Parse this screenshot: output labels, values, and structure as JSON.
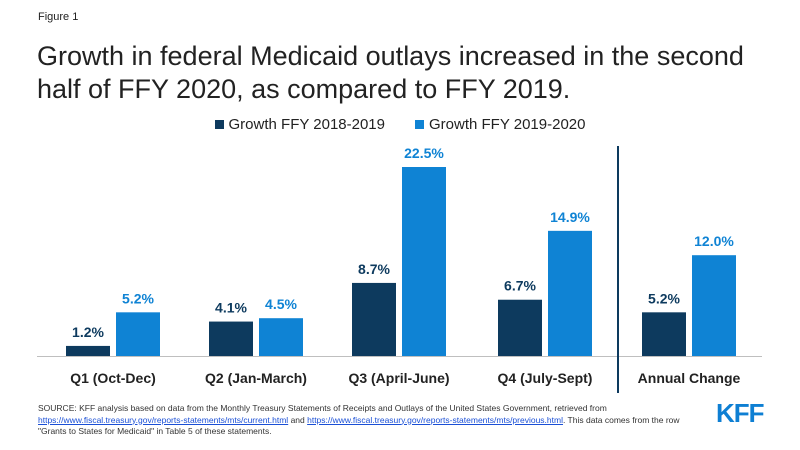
{
  "figure_label": "Figure 1",
  "title": "Growth in federal Medicaid outlays increased in the second half of FFY 2020, as compared to FFY 2019.",
  "logo": "KFF",
  "colors": {
    "series1": "#0d3a5e",
    "series2": "#0f83d4",
    "divider": "#0d3a5e"
  },
  "source": {
    "prefix": "SOURCE: KFF analysis based on data from the Monthly Treasury Statements of Receipts and Outlays of the United States Government, retrieved from ",
    "link1": "https://www.fiscal.treasury.gov/reports-statements/mts/current.html",
    "middle": " and ",
    "link2": "https://www.fiscal.treasury.gov/reports-statements/mts/previous.html",
    "suffix": ". This data comes from the row \"Grants to States for Medicaid\" in Table 5 of these statements."
  },
  "chart_data": {
    "type": "bar",
    "categories": [
      "Q1 (Oct-Dec)",
      "Q2 (Jan-March)",
      "Q3 (April-June)",
      "Q4 (July-Sept)",
      "Annual Change"
    ],
    "series": [
      {
        "name": "Growth FFY 2018-2019",
        "values": [
          1.2,
          4.1,
          8.7,
          6.7,
          5.2
        ],
        "labels": [
          "1.2%",
          "4.1%",
          "8.7%",
          "6.7%",
          "5.2%"
        ]
      },
      {
        "name": "Growth FFY 2019-2020",
        "values": [
          5.2,
          4.5,
          22.5,
          14.9,
          12.0
        ],
        "labels": [
          "5.2%",
          "4.5%",
          "22.5%",
          "14.9%",
          "12.0%"
        ]
      }
    ],
    "ylim": [
      0,
      22.5
    ],
    "grid": false,
    "legend": "top-center"
  }
}
